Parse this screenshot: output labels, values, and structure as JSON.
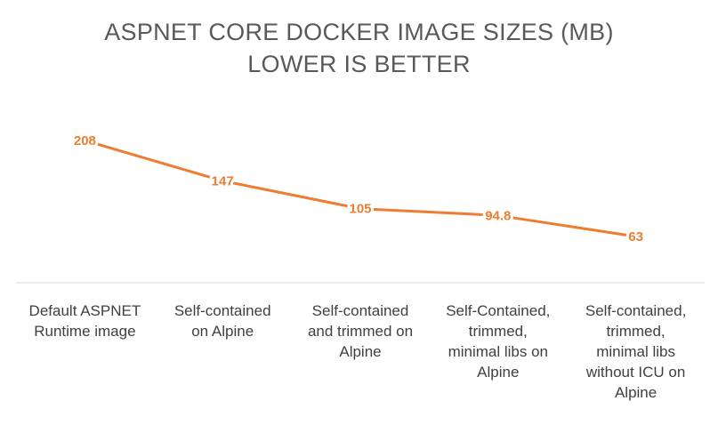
{
  "chart_data": {
    "type": "line",
    "title_lines": [
      "ASPNET CORE DOCKER IMAGE SIZES (MB)",
      "LOWER IS BETTER"
    ],
    "categories": [
      "Default ASPNET\nRuntime image",
      "Self-contained\non Alpine",
      "Self-contained\nand trimmed on\nAlpine",
      "Self-Contained,\ntrimmed,\nminimal libs on\nAlpine",
      "Self-contained,\ntrimmed,\nminimal libs\nwithout ICU on\nAlpine"
    ],
    "values": [
      208,
      147,
      105,
      94.8,
      63
    ],
    "data_labels": [
      "208",
      "147",
      "105",
      "94.8",
      "63"
    ],
    "xlabel": "",
    "ylabel": "",
    "grid": false,
    "legend": "none",
    "line_color": "#ED7D31"
  }
}
